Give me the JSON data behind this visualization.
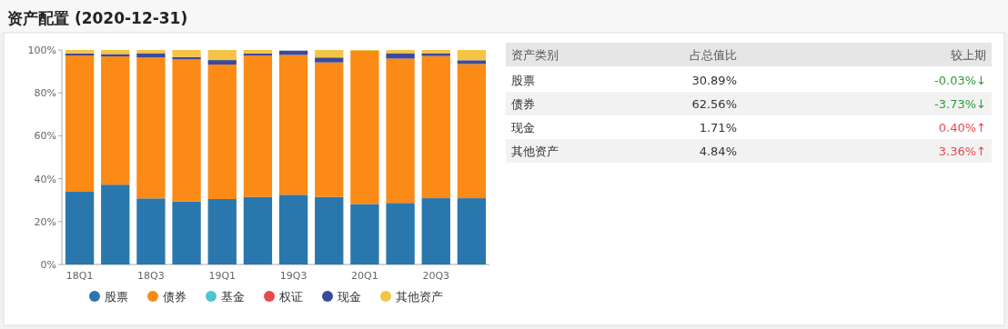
{
  "chart_data": [
    {
      "type": "bar",
      "title": "资产配置 (2020-12-31)",
      "stacked": true,
      "legend": "bottom",
      "grid": false,
      "categories": [
        "18Q1",
        null,
        "18Q3",
        null,
        "19Q1",
        null,
        "19Q3",
        null,
        "20Q1",
        null,
        "20Q3",
        null
      ],
      "ylim": [
        0,
        100
      ],
      "yticks": [
        {
          "value": 0,
          "label": "0%"
        },
        {
          "value": 20,
          "label": "20%"
        },
        {
          "value": 40,
          "label": "40%"
        },
        {
          "value": 60,
          "label": "60%"
        },
        {
          "value": 80,
          "label": "80%"
        },
        {
          "value": 100,
          "label": "100%"
        }
      ],
      "series": [
        {
          "name": "股票",
          "color": "#2a77ae",
          "values": [
            33.9,
            37.2,
            30.8,
            29.4,
            30.5,
            31.5,
            32.5,
            31.5,
            28.2,
            28.7,
            30.9,
            30.9
          ]
        },
        {
          "name": "债券",
          "color": "#fb8a16",
          "values": [
            63.5,
            59.8,
            65.7,
            66.2,
            62.7,
            65.9,
            65.2,
            62.7,
            71.4,
            67.3,
            66.3,
            62.6
          ]
        },
        {
          "name": "基金",
          "color": "#4ec4d3",
          "values": [
            0,
            0,
            0,
            0,
            0,
            0,
            0,
            0,
            0,
            0,
            0,
            0
          ]
        },
        {
          "name": "权证",
          "color": "#e8494b",
          "values": [
            0,
            0,
            0,
            0,
            0,
            0,
            0,
            0,
            0,
            0,
            0,
            0
          ]
        },
        {
          "name": "现金",
          "color": "#3b4a9c",
          "values": [
            1.0,
            1.1,
            2.0,
            1.1,
            2.1,
            1.0,
            2.0,
            2.3,
            0,
            2.5,
            1.3,
            1.7
          ]
        },
        {
          "name": "其他资产",
          "color": "#f4c447",
          "values": [
            1.6,
            1.9,
            1.5,
            3.3,
            4.7,
            1.6,
            null,
            3.5,
            0.4,
            1.5,
            1.5,
            4.8
          ]
        }
      ]
    },
    {
      "type": "other",
      "xlabel": "资产类别",
      "categories": [
        "股票",
        "债券",
        "现金",
        "其他资产"
      ],
      "series": [
        {
          "name": "占总值比",
          "values": [
            30.89,
            62.56,
            1.71,
            4.84
          ],
          "value_labels": [
            "30.89%",
            "62.56%",
            "1.71%",
            "4.84%"
          ]
        },
        {
          "name": "较上期",
          "colors": [
            "#2e9a3e",
            "#2e9a3e",
            "#e8494b",
            "#e8494b"
          ],
          "values": [
            -0.03,
            -3.73,
            0.4,
            3.36
          ],
          "value_labels": [
            "-0.03%↓",
            "-3.73%↓",
            "0.40%↑",
            "3.36%↑"
          ]
        }
      ]
    }
  ]
}
